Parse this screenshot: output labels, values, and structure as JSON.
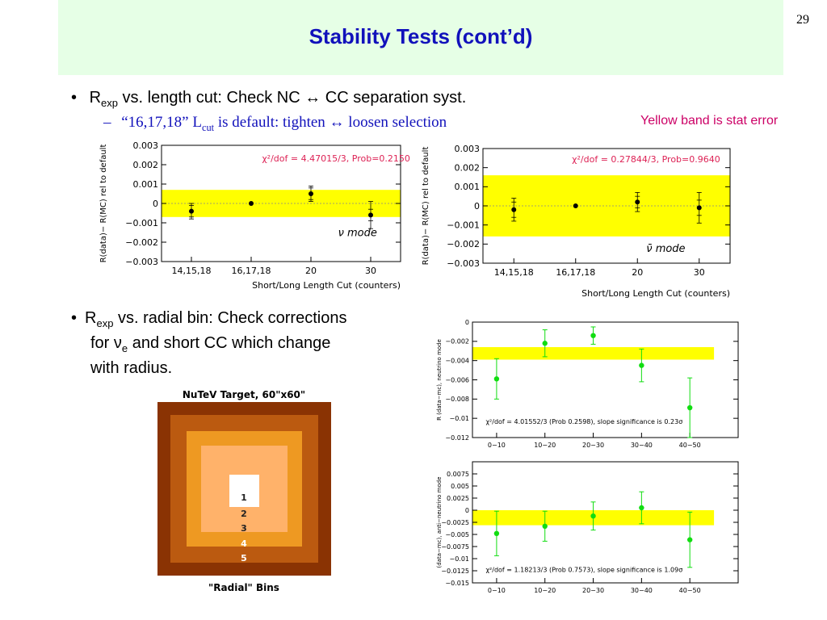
{
  "page": {
    "number": "29",
    "title": "Stability Tests (cont’d)"
  },
  "bullets": {
    "b1": {
      "marker": "•",
      "pre": "R",
      "sub": "exp",
      "post": " vs. length cut: Check NC ↔ CC separation syst."
    },
    "b1_sub": {
      "marker": "–",
      "pre": "“16,17,18” L",
      "sub": "cut",
      "post": " is default: tighten ↔ loosen selection"
    },
    "b2": {
      "marker": "•",
      "line1_pre": "R",
      "line1_sub": "exp",
      "line1_post": " vs. radial bin: Check corrections",
      "line2_pre": "for ν",
      "line2_sub": "e",
      "line2_post": " and short CC which change",
      "line3": "with radius."
    }
  },
  "note": "Yellow band is stat error",
  "colors": {
    "band": "#ffff00",
    "title": "#1111bb",
    "note": "#cc0066",
    "annot": "#dd2255",
    "green": "#11dd11"
  },
  "radial_diagram": {
    "title": "NuTeV Target, 60\"x60\"",
    "caption": "\"Radial\" Bins",
    "labels": [
      "1",
      "2",
      "3",
      "4",
      "5"
    ],
    "colors": [
      "#ffffff",
      "#ffb26a",
      "#ee9922",
      "#bb5a10",
      "#8a3303"
    ]
  },
  "chart_data": [
    {
      "type": "scatter",
      "ylabel": "R(data)− R(MC) rel to default",
      "xlabel": "Short/Long Length Cut (counters)",
      "categories": [
        "14,15,18",
        "16,17,18",
        "20",
        "30"
      ],
      "values": [
        -0.0004,
        0.0,
        0.0005,
        -0.0006
      ],
      "err_inner": [
        0.0003,
        0.0,
        0.0003,
        0.0003
      ],
      "err_outer": [
        0.0004,
        0.0,
        0.0004,
        0.0007
      ],
      "ylim": [
        -0.003,
        0.003
      ],
      "yticks": [
        "0.003",
        "0.002",
        "0.001",
        "0",
        "−0.001",
        "−0.002",
        "−0.003"
      ],
      "band": [
        -0.0007,
        0.0007
      ],
      "annotation": "χ²/dof = 4.47015/3, Prob=0.2150",
      "mode_label": "ν mode"
    },
    {
      "type": "scatter",
      "ylabel": "R(data)− R(MC) rel to default",
      "xlabel": "Short/Long Length Cut (counters)",
      "categories": [
        "14,15,18",
        "16,17,18",
        "20",
        "30"
      ],
      "values": [
        -0.0002,
        0.0,
        0.0002,
        -0.0001
      ],
      "err_inner": [
        0.0004,
        0.0,
        0.0003,
        0.0004
      ],
      "err_outer": [
        0.0006,
        0.0,
        0.0005,
        0.0008
      ],
      "ylim": [
        -0.003,
        0.003
      ],
      "yticks": [
        "0.003",
        "0.002",
        "0.001",
        "0",
        "−0.001",
        "−0.002",
        "−0.003"
      ],
      "band": [
        -0.0016,
        0.0016
      ],
      "annotation": "χ²/dof = 0.27844/3, Prob=0.9640",
      "mode_label": "ν̄ mode"
    },
    {
      "type": "scatter",
      "ylabel": "R (data−mc), neutrino mode",
      "categories": [
        "0−10",
        "10−20",
        "20−30",
        "30−40",
        "40−50"
      ],
      "values": [
        -0.0059,
        -0.0022,
        -0.0014,
        -0.0045,
        -0.0089
      ],
      "errors": [
        0.0021,
        0.0014,
        0.0009,
        0.0017,
        0.0031
      ],
      "ylim": [
        -0.012,
        0.0
      ],
      "yticks": [
        "0",
        "−0.002",
        "−0.004",
        "−0.006",
        "−0.008",
        "−0.01",
        "−0.012"
      ],
      "band": [
        -0.0039,
        -0.0026
      ],
      "annotation": "χ²/dof = 4.01552/3 (Prob 0.2598), slope significance is  0.23σ"
    },
    {
      "type": "scatter",
      "ylabel": "(data−mc), anti−neutrino mode",
      "categories": [
        "0−10",
        "10−20",
        "20−30",
        "30−40",
        "40−50"
      ],
      "values": [
        -0.0048,
        -0.0033,
        -0.0012,
        0.0005,
        -0.0061
      ],
      "errors": [
        0.0046,
        0.0031,
        0.0029,
        0.0033,
        0.0057
      ],
      "ylim": [
        -0.015,
        0.01
      ],
      "yticks": [
        "0.0075",
        "0.005",
        "0.0025",
        "0",
        "−0.0025",
        "−0.005",
        "−0.0075",
        "−0.01",
        "−0.0125",
        "−0.015"
      ],
      "band": [
        -0.0031,
        0.0
      ],
      "annotation": "χ²/dof = 1.18213/3 (Prob 0.7573), slope significance is  1.09σ"
    }
  ]
}
